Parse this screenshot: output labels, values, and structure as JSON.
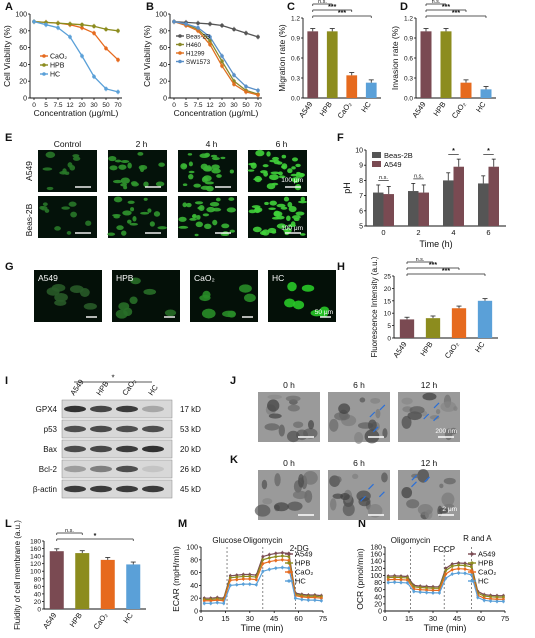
{
  "panel_letters": [
    "A",
    "B",
    "C",
    "D",
    "E",
    "F",
    "G",
    "H",
    "I",
    "J",
    "K",
    "L",
    "M",
    "N"
  ],
  "colors": {
    "A549": "#7a4a52",
    "HPB": "#8c8c1e",
    "CaO2": "#e66a1e",
    "HC": "#5aa0d8",
    "H460": "#8a8a2a",
    "H1299": "#e07020",
    "SW1573": "#5a90c8",
    "Beas2B": "#555555"
  },
  "panel_E": {
    "cols": [
      "Control",
      "2 h",
      "4 h",
      "6 h"
    ],
    "rows": [
      "A549",
      "Beas-2B"
    ],
    "scalebar": "100 μm"
  },
  "panel_G": {
    "labels": [
      "A549",
      "HPB",
      "CaO₂",
      "HC"
    ],
    "scalebar": "50 μm"
  },
  "panel_I": {
    "headers": [
      "A549",
      "HPB",
      "CaO₂",
      "HC"
    ],
    "bands": [
      "GPX4",
      "p53",
      "Bax",
      "Bcl-2",
      "β-actin"
    ],
    "kd": [
      "17 kD",
      "53 kD",
      "20 kD",
      "26 kD",
      "45 kD"
    ],
    "sig": "*"
  },
  "panel_J": {
    "times": [
      "0 h",
      "6 h",
      "12 h"
    ],
    "scalebar": "200 nm"
  },
  "panel_K": {
    "times": [
      "0 h",
      "6 h",
      "12 h"
    ],
    "scalebar": "2 μm"
  },
  "chart_data": [
    {
      "panel": "A",
      "type": "line",
      "xlabel": "Concentration (μg/mL)",
      "ylabel": "Cell Viability (%)",
      "ylim": [
        0,
        110
      ],
      "categories": [
        "0",
        "5",
        "7.5",
        "12",
        "20",
        "30",
        "50",
        "70"
      ],
      "yticks": [
        "0",
        "20",
        "40",
        "60",
        "80",
        "100"
      ],
      "series": [
        {
          "name": "CaO₂",
          "values": [
            100,
            99,
            98,
            96,
            92,
            85,
            65,
            50
          ]
        },
        {
          "name": "HPB",
          "values": [
            100,
            99,
            98,
            97,
            96,
            94,
            90,
            88
          ]
        },
        {
          "name": "HC",
          "values": [
            100,
            96,
            92,
            80,
            55,
            28,
            12,
            8
          ]
        }
      ]
    },
    {
      "panel": "B",
      "type": "line",
      "xlabel": "Concentration (μg/mL)",
      "ylabel": "Cell Viability (%)",
      "ylim": [
        0,
        110
      ],
      "categories": [
        "0",
        "5",
        "7.5",
        "12",
        "20",
        "30",
        "50",
        "70"
      ],
      "yticks": [
        "0",
        "20",
        "40",
        "60",
        "80",
        "100"
      ],
      "series": [
        {
          "name": "Beas-2B",
          "values": [
            100,
            99,
            98,
            97,
            95,
            90,
            85,
            80
          ]
        },
        {
          "name": "H460",
          "values": [
            100,
            96,
            90,
            75,
            48,
            22,
            10,
            5
          ]
        },
        {
          "name": "H1299",
          "values": [
            100,
            95,
            88,
            70,
            42,
            18,
            8,
            4
          ]
        },
        {
          "name": "SW1573",
          "values": [
            100,
            97,
            92,
            80,
            55,
            30,
            15,
            10
          ]
        }
      ]
    },
    {
      "panel": "C",
      "type": "bar",
      "ylabel": "Migration rate (%)",
      "ylim": [
        0,
        1.2
      ],
      "yticks": [
        "0.0",
        "0.3",
        "0.6",
        "0.9",
        "1.2"
      ],
      "categories": [
        "A549",
        "HPB",
        "CaO₂",
        "HC"
      ],
      "values": [
        1.0,
        1.0,
        0.34,
        0.23
      ],
      "annotations": [
        [
          "A549",
          "HPB",
          "n.s."
        ],
        [
          "A549",
          "CaO₂",
          "***"
        ],
        [
          "A549",
          "HC",
          "***"
        ]
      ]
    },
    {
      "panel": "D",
      "type": "bar",
      "ylabel": "Invasion rate (%)",
      "ylim": [
        0,
        1.2
      ],
      "yticks": [
        "0.0",
        "0.3",
        "0.6",
        "0.9",
        "1.2"
      ],
      "categories": [
        "A549",
        "HPB",
        "CaO₂",
        "HC"
      ],
      "values": [
        1.0,
        1.0,
        0.23,
        0.13
      ],
      "annotations": [
        [
          "A549",
          "HPB",
          "n.s."
        ],
        [
          "A549",
          "CaO₂",
          "***"
        ],
        [
          "A549",
          "HC",
          "***"
        ]
      ]
    },
    {
      "panel": "F",
      "type": "bar",
      "xlabel": "Time (h)",
      "ylabel": "pH",
      "ylim": [
        5,
        10
      ],
      "yticks": [
        "5",
        "6",
        "7",
        "8",
        "9",
        "10"
      ],
      "categories": [
        "0",
        "2",
        "4",
        "6"
      ],
      "series": [
        {
          "name": "Beas-2B",
          "values": [
            7.2,
            7.3,
            8.0,
            7.8
          ]
        },
        {
          "name": "A549",
          "values": [
            7.1,
            7.2,
            8.9,
            8.9
          ]
        }
      ],
      "annotations": [
        "n.s.",
        "n.s.",
        "*",
        "*"
      ]
    },
    {
      "panel": "H",
      "type": "bar",
      "ylabel": "Fluorescence Intensity (a.u.)",
      "ylim": [
        0,
        25
      ],
      "yticks": [
        "0",
        "5",
        "10",
        "15",
        "20",
        "25"
      ],
      "categories": [
        "A549",
        "HPB",
        "CaO₂",
        "HC"
      ],
      "values": [
        7.5,
        8.0,
        12.0,
        15.0
      ],
      "annotations": [
        [
          "A549",
          "HPB",
          "n.s."
        ],
        [
          "A549",
          "CaO₂",
          "***"
        ],
        [
          "A549",
          "HC",
          "***"
        ]
      ]
    },
    {
      "panel": "L",
      "type": "bar",
      "ylabel": "Fluidity of cell membrane (a.u.)",
      "ylim": [
        0,
        180
      ],
      "yticks": [
        "0",
        "20",
        "40",
        "60",
        "80",
        "100",
        "120",
        "140",
        "160",
        "180"
      ],
      "categories": [
        "A549",
        "HPB",
        "CaO₂",
        "HC"
      ],
      "values": [
        153,
        148,
        130,
        118
      ],
      "annotations": [
        [
          "A549",
          "HPB",
          "n.s."
        ],
        [
          "A549",
          "HC",
          "*"
        ]
      ]
    },
    {
      "panel": "M",
      "type": "line",
      "xlabel": "Time (min)",
      "ylabel": "ECAR (mpH/min)",
      "ylim": [
        0,
        100
      ],
      "xlim": [
        0,
        75
      ],
      "xticks": [
        "0",
        "15",
        "30",
        "45",
        "60",
        "75"
      ],
      "yticks": [
        "0",
        "20",
        "40",
        "60",
        "80",
        "100"
      ],
      "events": [
        {
          "x": 16,
          "label": "Glucose"
        },
        {
          "x": 38,
          "label": "Oligomycin"
        },
        {
          "x": 58,
          "label": "2-DG"
        }
      ],
      "x": [
        2,
        6,
        10,
        14,
        18,
        22,
        26,
        30,
        34,
        38,
        42,
        46,
        50,
        54,
        58,
        62,
        66,
        70,
        74
      ],
      "series": [
        {
          "name": "A549",
          "values": [
            20,
            20,
            21,
            20,
            55,
            56,
            57,
            57,
            56,
            85,
            88,
            90,
            91,
            90,
            28,
            26,
            25,
            25,
            24
          ]
        },
        {
          "name": "HPB",
          "values": [
            18,
            18,
            19,
            18,
            52,
            53,
            54,
            54,
            53,
            80,
            83,
            85,
            86,
            85,
            26,
            24,
            23,
            23,
            22
          ]
        },
        {
          "name": "CaO₂",
          "values": [
            16,
            16,
            17,
            16,
            48,
            49,
            50,
            50,
            49,
            74,
            77,
            79,
            80,
            79,
            24,
            22,
            21,
            21,
            20
          ]
        },
        {
          "name": "HC",
          "values": [
            12,
            12,
            13,
            12,
            40,
            41,
            42,
            42,
            41,
            62,
            65,
            67,
            68,
            67,
            20,
            18,
            17,
            17,
            16
          ]
        }
      ]
    },
    {
      "panel": "N",
      "type": "line",
      "xlabel": "Time (min)",
      "ylabel": "OCR (pmol/min)",
      "ylim": [
        0,
        180
      ],
      "xlim": [
        0,
        75
      ],
      "xticks": [
        "0",
        "15",
        "30",
        "45",
        "60",
        "75"
      ],
      "yticks": [
        "0",
        "20",
        "40",
        "60",
        "80",
        "100",
        "120",
        "140",
        "160",
        "180"
      ],
      "events": [
        {
          "x": 16,
          "label": "Oligomycin"
        },
        {
          "x": 37,
          "label": "FCCP"
        },
        {
          "x": 54,
          "label": "R and A"
        }
      ],
      "x": [
        2,
        6,
        10,
        14,
        18,
        22,
        26,
        30,
        34,
        38,
        42,
        46,
        50,
        54,
        58,
        62,
        66,
        70,
        74
      ],
      "series": [
        {
          "name": "A549",
          "values": [
            98,
            99,
            98,
            97,
            72,
            70,
            69,
            68,
            68,
            120,
            132,
            135,
            134,
            130,
            55,
            46,
            44,
            43,
            43
          ]
        },
        {
          "name": "HPB",
          "values": [
            94,
            95,
            94,
            93,
            68,
            66,
            65,
            64,
            64,
            114,
            126,
            129,
            128,
            124,
            50,
            42,
            40,
            39,
            39
          ]
        },
        {
          "name": "CaO₂",
          "values": [
            88,
            89,
            88,
            87,
            62,
            60,
            59,
            58,
            58,
            104,
            116,
            119,
            118,
            114,
            44,
            36,
            34,
            33,
            33
          ]
        },
        {
          "name": "HC",
          "values": [
            80,
            81,
            80,
            79,
            55,
            53,
            52,
            51,
            51,
            92,
            104,
            107,
            106,
            102,
            38,
            30,
            28,
            27,
            27
          ]
        }
      ]
    }
  ]
}
